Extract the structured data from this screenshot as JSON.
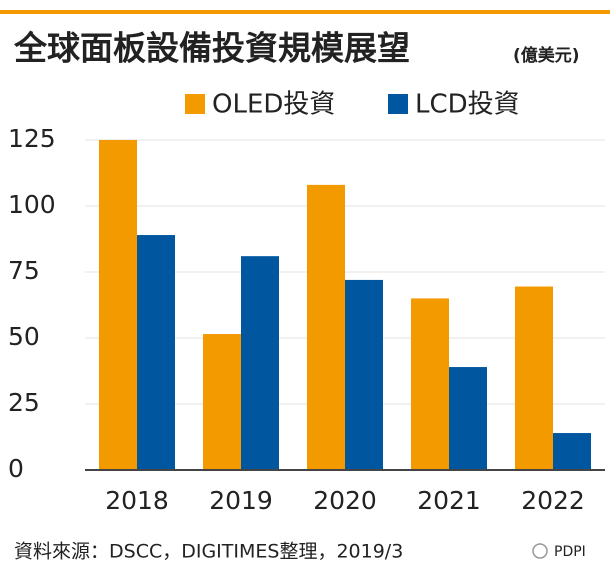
{
  "chart_data": {
    "type": "bar",
    "title": "全球面板設備投資規模展望",
    "subtitle": "(億美元)",
    "categories": [
      "2018",
      "2019",
      "2020",
      "2021",
      "2022"
    ],
    "series": [
      {
        "name": "OLED投資",
        "color": "#f29a00",
        "values": [
          125,
          51.5,
          108,
          65,
          69.5
        ]
      },
      {
        "name": "LCD投資",
        "color": "#0057a0",
        "values": [
          89,
          81,
          72,
          39,
          14
        ]
      }
    ],
    "ylim": [
      0,
      125
    ],
    "yticks": [
      0,
      25,
      50,
      75,
      100,
      125
    ],
    "grid": true,
    "source": "資料來源：DSCC，DIGITIMES整理，2019/3",
    "watermark": "PDPI"
  }
}
